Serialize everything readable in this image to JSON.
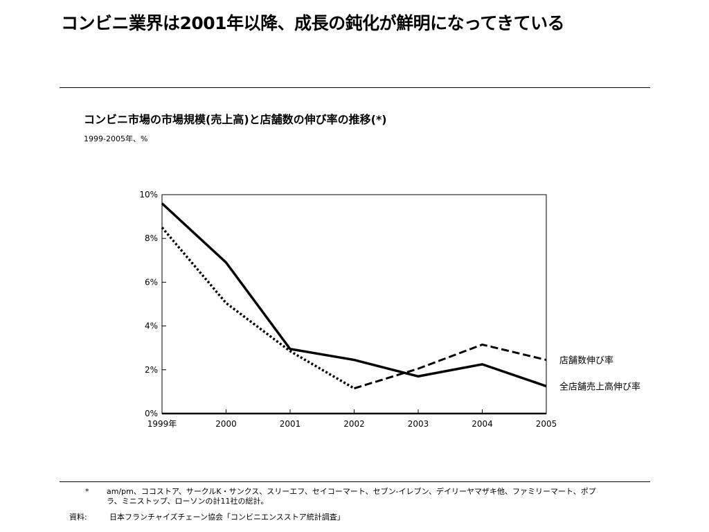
{
  "headline": "コンビニ業界は2001年以降、成長の鈍化が鮮明になってきている",
  "chart_data": {
    "type": "line",
    "title": "コンビニ市場の市場規模(売上高)と店舗数の伸び率の推移(*)",
    "subtitle": "1999-2005年、%",
    "x": [
      1999,
      2000,
      2001,
      2002,
      2003,
      2004,
      2005
    ],
    "x_tick_labels": [
      "1999年",
      "2000",
      "2001",
      "2002",
      "2003",
      "2004",
      "2005"
    ],
    "y_tick_labels": [
      "0%",
      "2%",
      "4%",
      "6%",
      "8%",
      "10%"
    ],
    "y_ticks": [
      0,
      2,
      4,
      6,
      8,
      10
    ],
    "ylim": [
      0,
      10
    ],
    "grid": false,
    "series": [
      {
        "name": "全店舗売上高伸び率",
        "style": "solid",
        "values": [
          9.6,
          6.9,
          2.95,
          2.45,
          1.7,
          2.25,
          1.25
        ]
      },
      {
        "name": "店舗数伸び率",
        "style": "dotted-dashed",
        "values": [
          8.5,
          5.05,
          2.85,
          1.15,
          2.05,
          3.15,
          2.45
        ]
      }
    ]
  },
  "footnote": {
    "mark": "*",
    "text": "am/pm、ココストア、サークルK・サンクス、スリーエフ、セイコーマート、セブン-イレブン、デイリーヤマザキ他、ファミリーマート、ポプラ、ミニストップ、ローソンの計11社の総計。"
  },
  "source": {
    "label": "資料:",
    "text": "日本フランチャイズチェーン協会「コンビニエンスストア統計調査」"
  }
}
